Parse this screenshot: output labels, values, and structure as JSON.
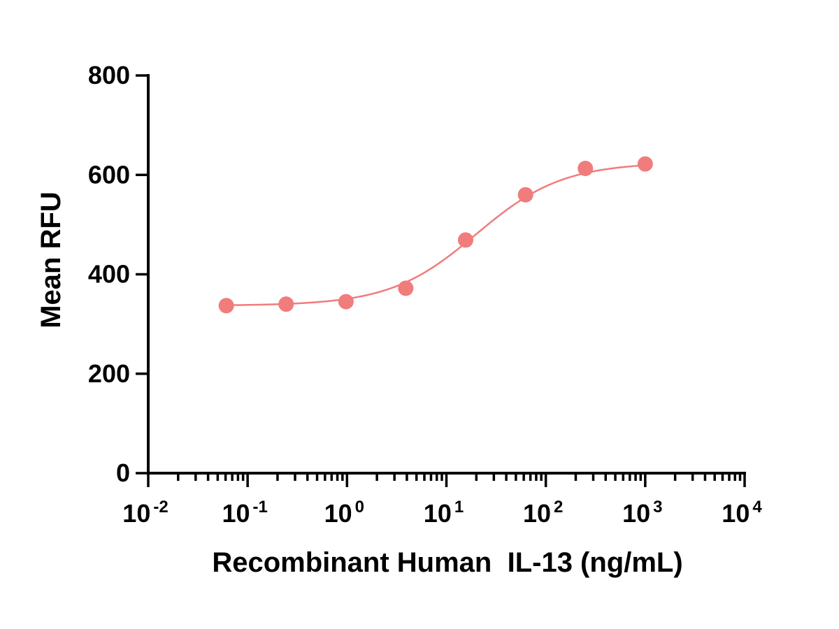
{
  "chart_data": {
    "type": "scatter",
    "title": "",
    "xlabel": "Recombinant Human  IL-13 (ng/mL)",
    "ylabel": "Mean RFU",
    "x_scale": "log",
    "xlim": [
      0.01,
      10000
    ],
    "ylim": [
      0,
      800
    ],
    "x_ticks": [
      {
        "value": 0.01,
        "base": "10",
        "exp": "-2"
      },
      {
        "value": 0.1,
        "base": "10",
        "exp": "-1"
      },
      {
        "value": 1,
        "base": "10",
        "exp": "0"
      },
      {
        "value": 10,
        "base": "10",
        "exp": "1"
      },
      {
        "value": 100,
        "base": "10",
        "exp": "2"
      },
      {
        "value": 1000,
        "base": "10",
        "exp": "3"
      },
      {
        "value": 10000,
        "base": "10",
        "exp": "4"
      }
    ],
    "y_ticks": [
      0,
      200,
      400,
      600,
      800
    ],
    "grid": false,
    "color": "#f07c7c",
    "series": [
      {
        "x": [
          0.061,
          0.244,
          0.977,
          3.9,
          15.6,
          62.5,
          250,
          1000
        ],
        "y": [
          337,
          340,
          345,
          372,
          469,
          560,
          613,
          622
        ]
      }
    ],
    "fit_curve": {
      "type": "4PL",
      "bottom": 337,
      "top": 625,
      "ec50": 20,
      "hill": 1.0
    }
  }
}
